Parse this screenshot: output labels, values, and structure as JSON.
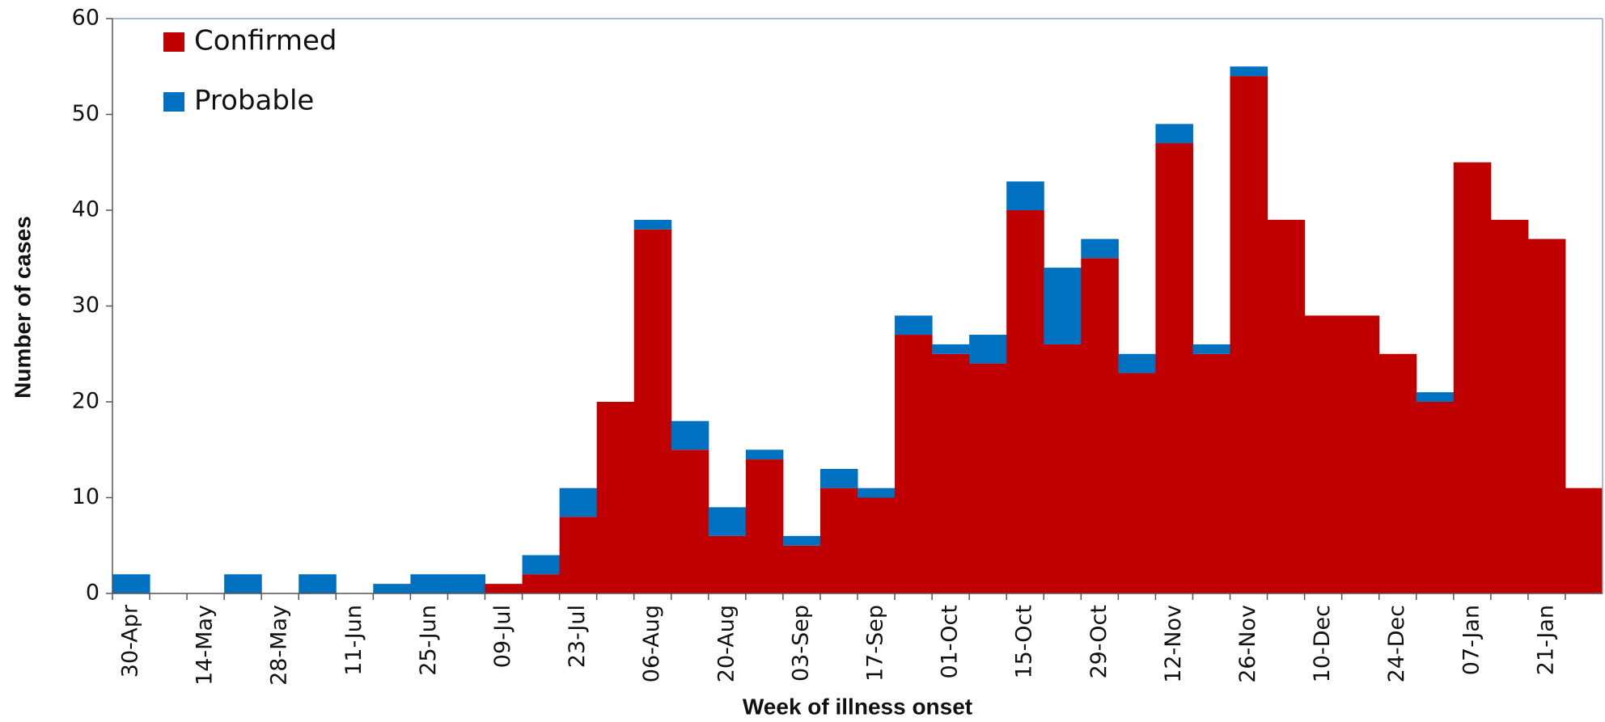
{
  "chart_data": {
    "type": "stacked_bar",
    "xlabel": "Week of illness onset",
    "ylabel": "Number of cases",
    "categories": [
      "30-Apr",
      null,
      "14-May",
      null,
      "28-May",
      null,
      "11-Jun",
      null,
      "25-Jun",
      null,
      "09-Jul",
      null,
      "23-Jul",
      null,
      "06-Aug",
      null,
      "20-Aug",
      null,
      "03-Sep",
      null,
      "17-Sep",
      null,
      "01-Oct",
      null,
      "15-Oct",
      null,
      "29-Oct",
      null,
      "12-Nov",
      null,
      "26-Nov",
      null,
      "10-Dec",
      null,
      "24-Dec",
      null,
      "07-Jan",
      null,
      "21-Jan",
      null
    ],
    "series": [
      {
        "name": "Confirmed",
        "color": "#c00000",
        "values": [
          0,
          0,
          0,
          0,
          0,
          0,
          0,
          0,
          0,
          0,
          1,
          2,
          8,
          20,
          38,
          15,
          6,
          14,
          5,
          11,
          10,
          27,
          25,
          24,
          40,
          26,
          35,
          23,
          47,
          25,
          54,
          39,
          29,
          29,
          25,
          20,
          45,
          39,
          37,
          11
        ]
      },
      {
        "name": "Probable",
        "color": "#0070c0",
        "values": [
          2,
          0,
          0,
          2,
          0,
          2,
          0,
          1,
          2,
          2,
          0,
          2,
          3,
          0,
          1,
          3,
          3,
          1,
          1,
          2,
          1,
          2,
          1,
          3,
          3,
          8,
          2,
          2,
          2,
          1,
          1,
          0,
          0,
          0,
          0,
          1,
          0,
          0,
          0,
          0
        ]
      }
    ],
    "ylim": [
      0,
      60
    ],
    "yticks": [
      0,
      10,
      20,
      30,
      40,
      50,
      60
    ],
    "legend": "upper left"
  }
}
